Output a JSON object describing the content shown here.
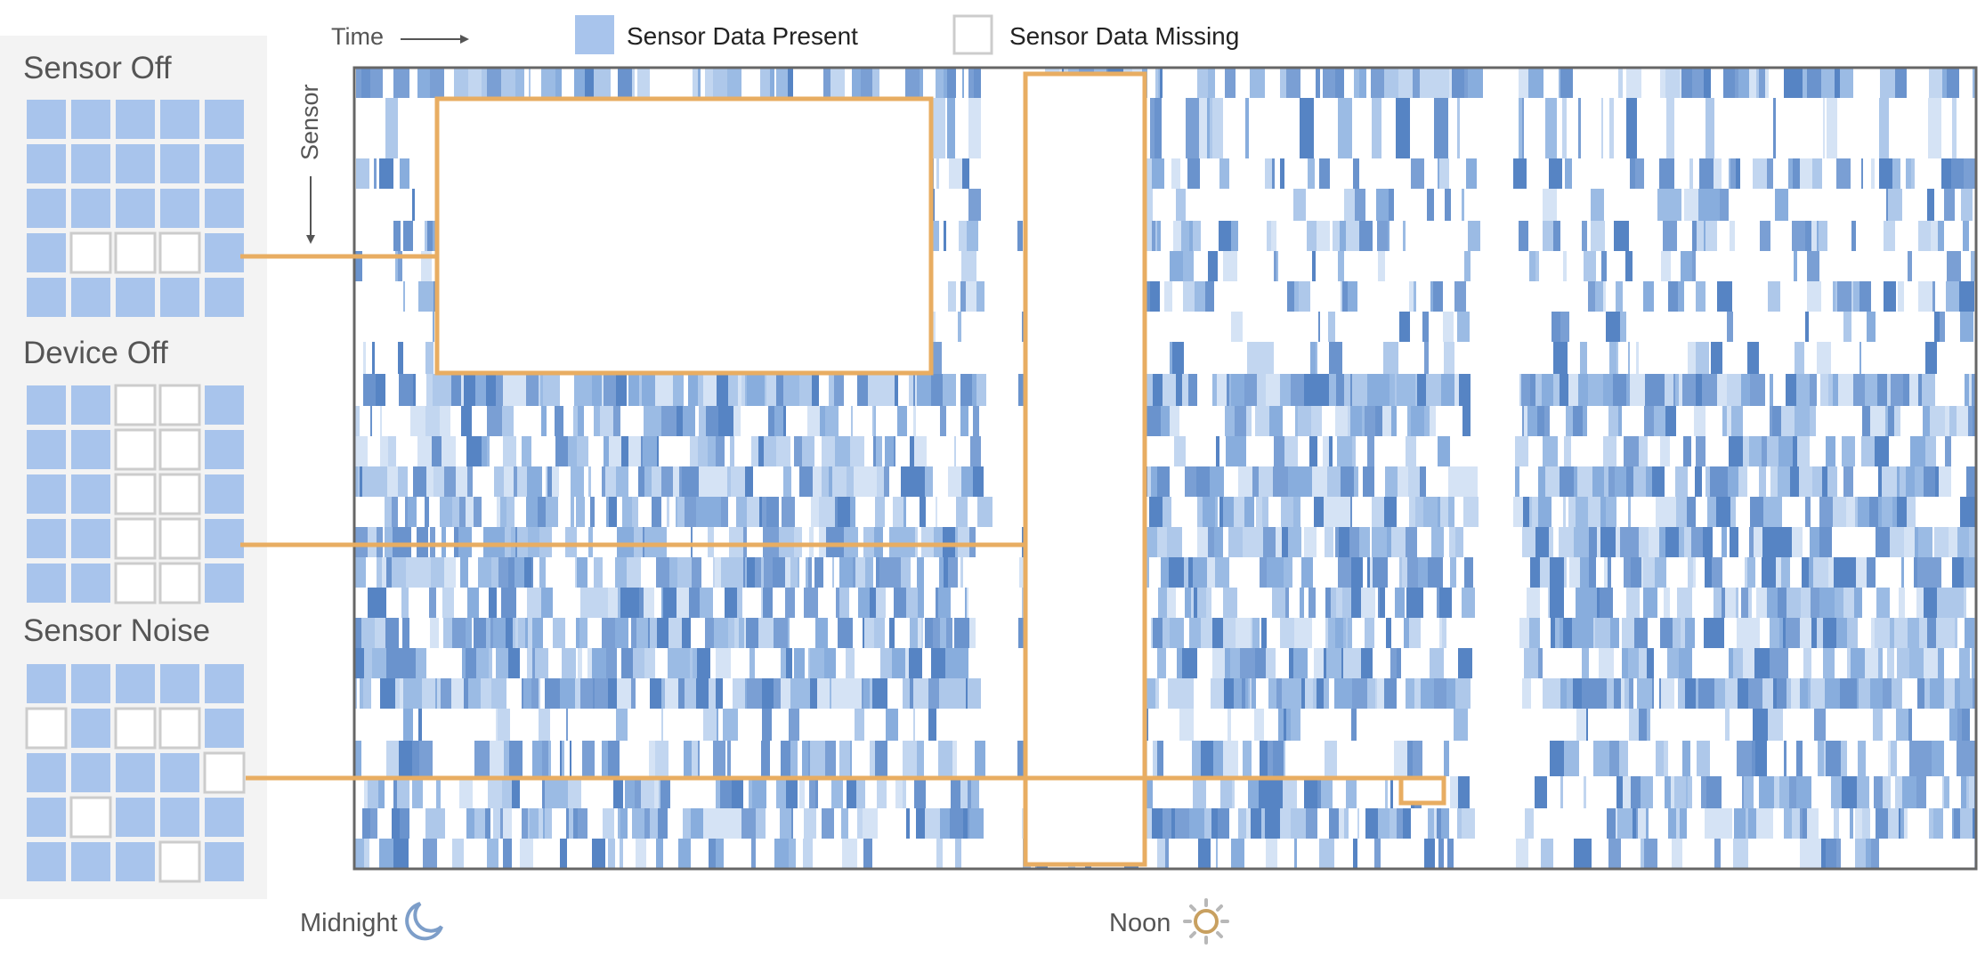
{
  "legend": {
    "time_label": "Time",
    "sensor_label": "Sensor",
    "present_label": "Sensor Data Present",
    "missing_label": "Sensor Data Missing"
  },
  "panels": [
    {
      "title": "Sensor Off",
      "grid": [
        "PPPPP",
        "PPPPP",
        "PPPPP",
        "PMMMP",
        "PPPPP"
      ]
    },
    {
      "title": "Device Off",
      "grid": [
        "PPMMP",
        "PPMMP",
        "PPMMP",
        "PPMMP",
        "PPMMP"
      ]
    },
    {
      "title": "Sensor Noise",
      "grid": [
        "PPPPP",
        "MPMMP",
        "PPPPM",
        "PMPPP",
        "PPPMP"
      ]
    }
  ],
  "axis": {
    "midnight_label": "Midnight",
    "noon_label": "Noon"
  },
  "icons": {
    "midnight": "crescent-moon-icon",
    "noon": "sun-icon"
  },
  "colors": {
    "present": "#a8c4ec",
    "present_dark": "#4f80c6",
    "missing_border": "#cccccc",
    "highlight": "#e8ad62",
    "panel_bg": "#f3f3f3",
    "text": "#555555"
  }
}
